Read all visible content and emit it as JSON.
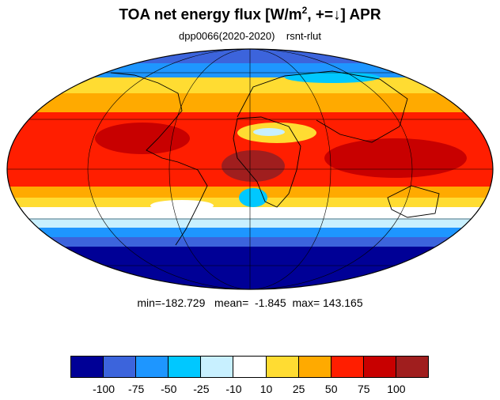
{
  "title": {
    "main": "TOA net energy flux  [W/m",
    "sup": "2",
    "tail": ", +=↓] APR"
  },
  "subtitle": "dpp0066(2020-2020)    rsnt-rlut",
  "stats": "min=-182.729   mean=  -1.845  max= 143.165",
  "projection": "mollweide",
  "colorbar": {
    "colors": [
      "#000096",
      "#3c64dc",
      "#1e96ff",
      "#00c8ff",
      "#c8f0ff",
      "#ffffff",
      "#ffdc32",
      "#ffaa00",
      "#ff1e00",
      "#c80000",
      "#a01e1e"
    ],
    "labels": [
      "-100",
      "-75",
      "-50",
      "-25",
      "-10",
      "10",
      "25",
      "50",
      "75",
      "100"
    ]
  }
}
